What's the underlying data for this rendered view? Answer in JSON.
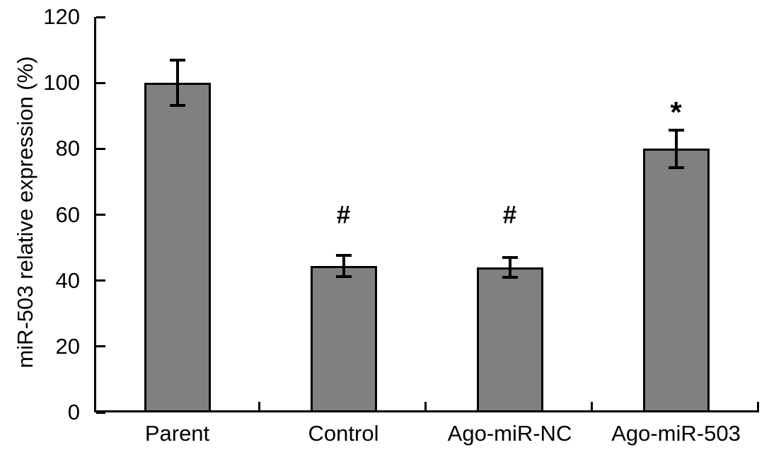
{
  "figure": {
    "background_color": "#ffffff",
    "axis_color": "#000000"
  },
  "chart_data": {
    "type": "bar",
    "title": "",
    "xlabel": "",
    "ylabel": "miR-503 relative expression (%)",
    "categories": [
      "Parent",
      "Control",
      "Ago-miR-NC",
      "Ago-miR-503"
    ],
    "values": [
      100,
      44.5,
      44,
      80
    ],
    "errors": [
      6.8,
      3.2,
      3.0,
      5.7
    ],
    "annotations": [
      {
        "category_index": 1,
        "text": "#",
        "y_value": 60
      },
      {
        "category_index": 2,
        "text": "#",
        "y_value": 60
      },
      {
        "category_index": 3,
        "text": "*",
        "y_value": 91
      }
    ],
    "ylim": [
      0,
      120
    ],
    "yticks": [
      0,
      20,
      40,
      60,
      80,
      100,
      120
    ],
    "bar_color": "#808080",
    "bar_border_color": "#000000",
    "error_bar_color": "#000000",
    "grid": false,
    "legend": null
  }
}
